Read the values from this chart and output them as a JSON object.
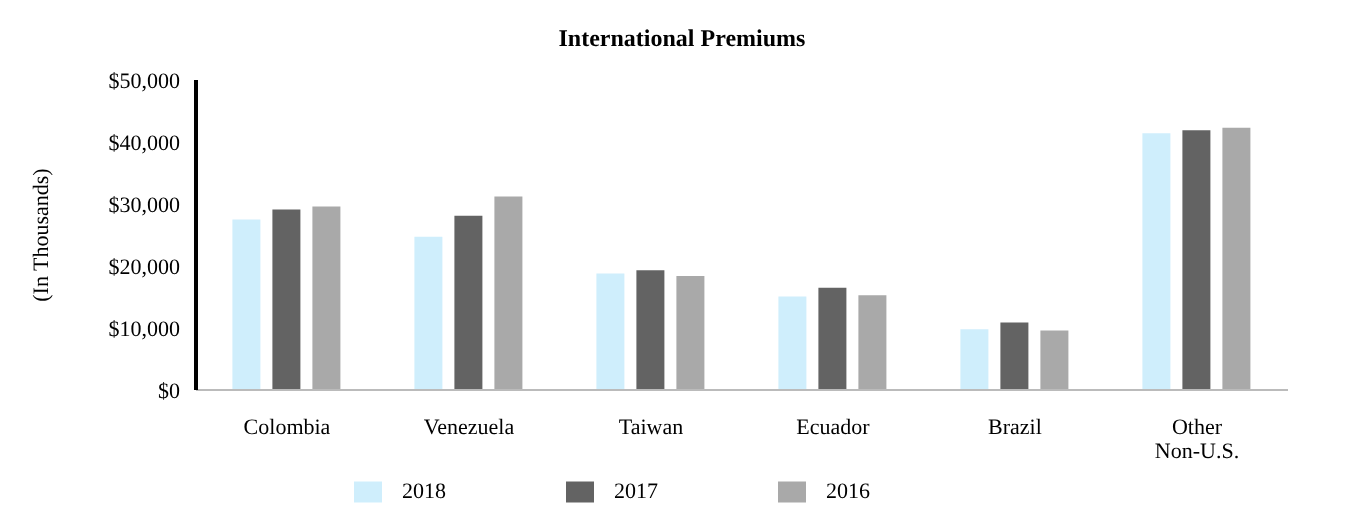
{
  "chart_data": {
    "type": "bar",
    "title": "International Premiums",
    "ylabel": "(In Thousands)",
    "categories": [
      "Colombia",
      "Venezuela",
      "Taiwan",
      "Ecuador",
      "Brazil",
      "Other\nNon-U.S."
    ],
    "series": [
      {
        "name": "2018",
        "color": "#cfeefc",
        "values": [
          27500,
          24700,
          18800,
          15100,
          9800,
          41400
        ]
      },
      {
        "name": "2017",
        "color": "#636363",
        "values": [
          29100,
          28100,
          19300,
          16500,
          10900,
          41900
        ]
      },
      {
        "name": "2016",
        "color": "#a9a9a9",
        "values": [
          29600,
          31200,
          18400,
          15300,
          9600,
          42300
        ]
      }
    ],
    "ylim": [
      0,
      50000
    ],
    "yticks": [
      {
        "value": 0,
        "label": "$0"
      },
      {
        "value": 10000,
        "label": "$10,000"
      },
      {
        "value": 20000,
        "label": "$20,000"
      },
      {
        "value": 30000,
        "label": "$30,000"
      },
      {
        "value": 40000,
        "label": "$40,000"
      },
      {
        "value": 50000,
        "label": "$50,000"
      }
    ],
    "legend": "bottom"
  }
}
